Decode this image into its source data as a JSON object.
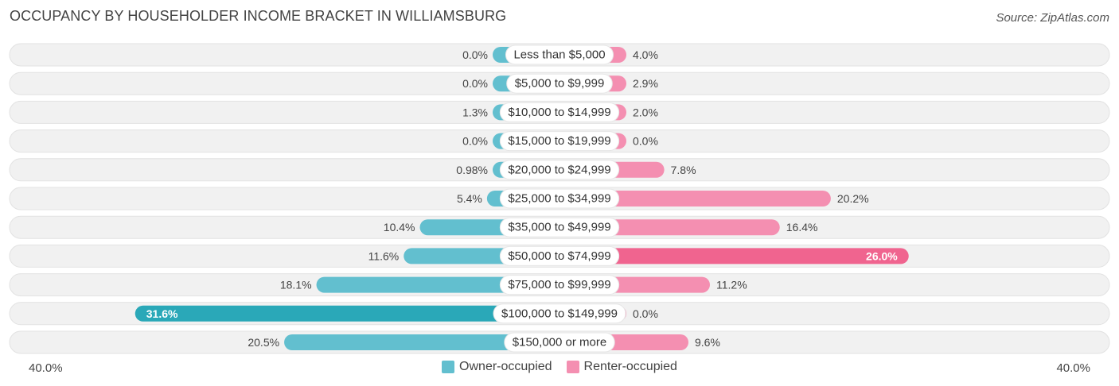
{
  "header": {
    "title": "OCCUPANCY BY HOUSEHOLDER INCOME BRACKET IN WILLIAMSBURG",
    "source": "Source: ZipAtlas.com"
  },
  "axis": {
    "left_label": "40.0%",
    "right_label": "40.0%"
  },
  "legend": {
    "owner_label": "Owner-occupied",
    "renter_label": "Renter-occupied"
  },
  "colors": {
    "owner": "#62bfcf",
    "owner_strong": "#2aa8b8",
    "renter": "#f48fb1",
    "renter_strong": "#f0648f",
    "track": "#f1f1f1"
  },
  "chart_data": {
    "type": "bar",
    "orientation": "horizontal-diverging",
    "xlim": [
      -40,
      40
    ],
    "categories": [
      "Less than $5,000",
      "$5,000 to $9,999",
      "$10,000 to $14,999",
      "$15,000 to $19,999",
      "$20,000 to $24,999",
      "$25,000 to $34,999",
      "$35,000 to $49,999",
      "$50,000 to $74,999",
      "$75,000 to $99,999",
      "$100,000 to $149,999",
      "$150,000 or more"
    ],
    "series": [
      {
        "name": "Owner-occupied",
        "values": [
          0.0,
          0.0,
          1.3,
          0.0,
          0.98,
          5.4,
          10.4,
          11.6,
          18.1,
          31.6,
          20.5
        ],
        "labels": [
          "0.0%",
          "0.0%",
          "1.3%",
          "0.0%",
          "0.98%",
          "5.4%",
          "10.4%",
          "11.6%",
          "18.1%",
          "31.6%",
          "20.5%"
        ]
      },
      {
        "name": "Renter-occupied",
        "values": [
          4.0,
          2.9,
          2.0,
          0.0,
          7.8,
          20.2,
          16.4,
          26.0,
          11.2,
          0.0,
          9.6
        ],
        "labels": [
          "4.0%",
          "2.9%",
          "2.0%",
          "0.0%",
          "7.8%",
          "20.2%",
          "16.4%",
          "26.0%",
          "11.2%",
          "0.0%",
          "9.6%"
        ]
      }
    ]
  }
}
